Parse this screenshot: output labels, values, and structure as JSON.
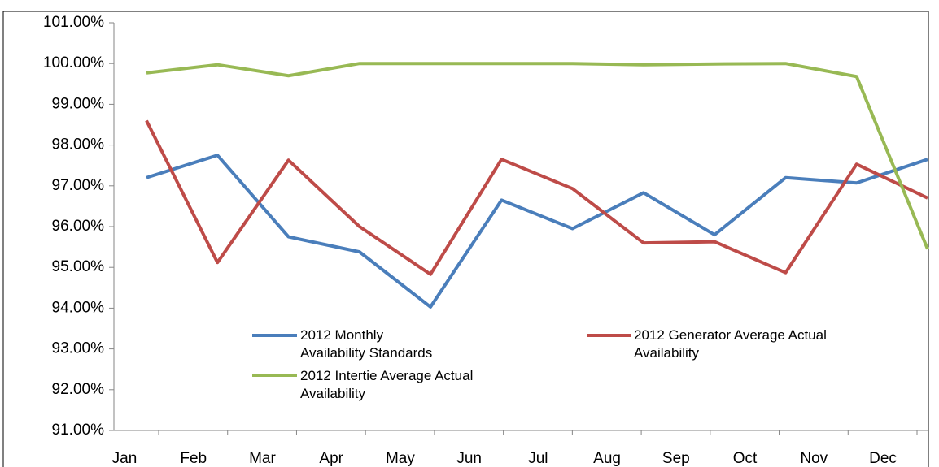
{
  "chart_data": {
    "type": "line",
    "categories": [
      "Jan",
      "Feb",
      "Mar",
      "Apr",
      "May",
      "Jun",
      "Jul",
      "Aug",
      "Sep",
      "Oct",
      "Nov",
      "Dec"
    ],
    "series": [
      {
        "name": "2012 Monthly Availability Standards",
        "color": "#4a7ebb",
        "values": [
          97.2,
          97.75,
          95.75,
          95.38,
          94.03,
          96.65,
          95.95,
          96.83,
          95.8,
          97.2,
          97.07,
          97.65
        ]
      },
      {
        "name": "2012 Generator Average Actual Availability",
        "color": "#be4b48",
        "values": [
          98.6,
          95.12,
          97.63,
          96.0,
          94.83,
          97.65,
          96.93,
          95.6,
          95.63,
          94.87,
          97.53,
          96.7
        ]
      },
      {
        "name": "2012 Intertie Average Actual Availability",
        "color": "#98b954",
        "values": [
          99.77,
          99.97,
          99.7,
          100.0,
          100.0,
          100.0,
          100.0,
          99.97,
          99.99,
          100.0,
          99.68,
          95.45
        ]
      }
    ],
    "ylim": [
      91,
      101
    ],
    "yticks": [
      {
        "value": 91,
        "label": "91.00%"
      },
      {
        "value": 92,
        "label": "92.00%"
      },
      {
        "value": 93,
        "label": "93.00%"
      },
      {
        "value": 94,
        "label": "94.00%"
      },
      {
        "value": 95,
        "label": "95.00%"
      },
      {
        "value": 96,
        "label": "96.00%"
      },
      {
        "value": 97,
        "label": "97.00%"
      },
      {
        "value": 98,
        "label": "98.00%"
      },
      {
        "value": 99,
        "label": "99.00%"
      },
      {
        "value": 100,
        "label": "100.00%"
      },
      {
        "value": 101,
        "label": "101.00%"
      }
    ],
    "grid": false
  }
}
